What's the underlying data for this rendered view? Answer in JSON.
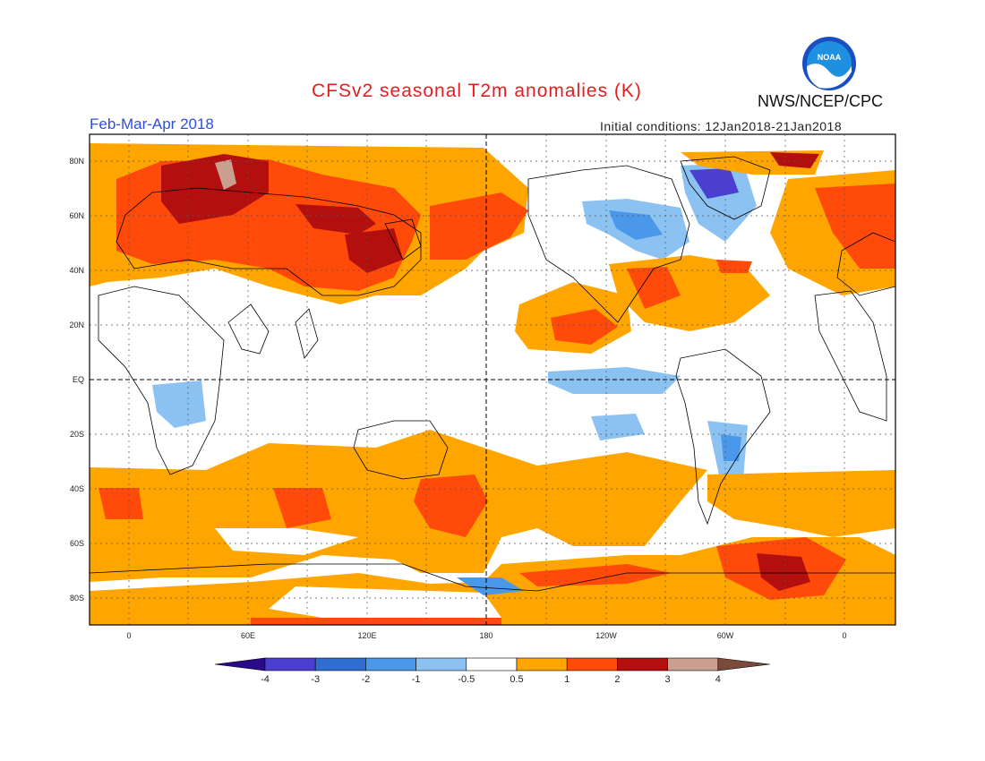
{
  "header": {
    "title": "CFSv2 seasonal T2m anomalies (K)",
    "season": "Feb-Mar-Apr 2018",
    "initial_conditions": "Initial conditions: 12Jan2018-21Jan2018",
    "agency": "NWS/NCEP/CPC",
    "logo_text": "NOAA"
  },
  "map": {
    "lat_labels": [
      "80N",
      "60N",
      "40N",
      "20N",
      "EQ",
      "20S",
      "40S",
      "60S",
      "80S"
    ],
    "lon_labels": [
      "0",
      "60E",
      "120E",
      "180",
      "120W",
      "60W",
      "0"
    ]
  },
  "colorbar": {
    "labels": [
      "-4",
      "-3",
      "-2",
      "-1",
      "-0.5",
      "0.5",
      "1",
      "2",
      "3",
      "4"
    ],
    "colors": [
      "#2b0a8a",
      "#4b3fcf",
      "#2d6ed0",
      "#4a98ea",
      "#8cc2f2",
      "#ffffff",
      "#ffa500",
      "#ff4a0a",
      "#b30f0f",
      "#c9a090",
      "#7a4a3a"
    ]
  },
  "colors": {
    "warm_1": "#ffa500",
    "warm_2": "#ff4a0a",
    "warm_3": "#b30f0f",
    "cold_1": "#8cc2f2",
    "cold_2": "#4a98ea",
    "cold_3": "#2d6ed0",
    "title_red": "#e02020",
    "subtitle_blue": "#2f4fe0"
  }
}
